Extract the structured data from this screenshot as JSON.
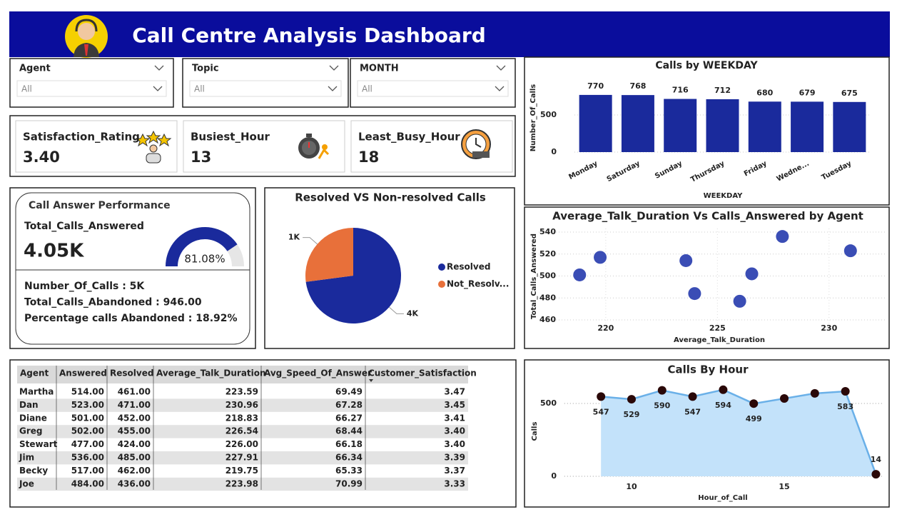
{
  "header": {
    "title": "Call Centre Analysis Dashboard"
  },
  "slicers": [
    {
      "label": "Agent",
      "value": "All"
    },
    {
      "label": "Topic",
      "value": "All"
    },
    {
      "label": "MONTH",
      "value": "All"
    }
  ],
  "kpis": [
    {
      "label": "Satisfaction_Rating",
      "value": "3.40"
    },
    {
      "label": "Busiest_Hour",
      "value": "13"
    },
    {
      "label": "Least_Busy_Hour",
      "value": "18"
    }
  ],
  "performance": {
    "title": "Call Answer Performance",
    "answered_label": "Total_Calls_Answered",
    "answered_value": "4.05K",
    "lines": [
      "Number_Of_Calls : 5K",
      "Total_Calls_Abandoned : 946.00",
      "Percentage calls Abandoned : 18.92%"
    ]
  },
  "table": {
    "columns": [
      "Agent",
      "Answered",
      "Resolved",
      "Average_Talk_Duration",
      "Avg_Speed_Of_Answer",
      "Customer_Satisfaction"
    ],
    "rows": [
      [
        "Martha",
        "514.00",
        "461.00",
        "223.59",
        "69.49",
        "3.47"
      ],
      [
        "Dan",
        "523.00",
        "471.00",
        "230.96",
        "67.28",
        "3.45"
      ],
      [
        "Diane",
        "501.00",
        "452.00",
        "218.83",
        "66.27",
        "3.41"
      ],
      [
        "Greg",
        "502.00",
        "455.00",
        "226.54",
        "68.44",
        "3.40"
      ],
      [
        "Stewart",
        "477.00",
        "424.00",
        "226.00",
        "66.18",
        "3.40"
      ],
      [
        "Jim",
        "536.00",
        "485.00",
        "227.91",
        "66.34",
        "3.39"
      ],
      [
        "Becky",
        "517.00",
        "462.00",
        "219.75",
        "65.33",
        "3.37"
      ],
      [
        "Joe",
        "484.00",
        "436.00",
        "223.98",
        "70.99",
        "3.33"
      ]
    ]
  },
  "chart_data": [
    {
      "type": "bar",
      "title": "Calls by WEEKDAY",
      "xlabel": "WEEKDAY",
      "ylabel": "Number_Of_Calls",
      "categories": [
        "Monday",
        "Saturday",
        "Sunday",
        "Thursday",
        "Friday",
        "Wedne...",
        "Tuesday"
      ],
      "values": [
        770,
        768,
        716,
        712,
        680,
        679,
        675
      ],
      "color": "#1a2a9c",
      "ylim": [
        0,
        1000
      ],
      "yticks": [
        0,
        500
      ],
      "grid": true
    },
    {
      "type": "pie",
      "title": "Resolved VS Non-resolved Calls",
      "categories": [
        "Resolved",
        "Not_Resolv..."
      ],
      "values": [
        3646,
        1354
      ],
      "value_labels": [
        "4K",
        "1K"
      ],
      "colors": [
        "#1a2a9c",
        "#e8703a"
      ]
    },
    {
      "type": "scatter",
      "title": "Average_Talk_Duration Vs Calls_Answered by Agent",
      "xlabel": "Average_Talk_Duration",
      "ylabel": "Total_Calls_Answered",
      "x": [
        223.59,
        230.96,
        218.83,
        226.54,
        226.0,
        227.91,
        219.75,
        223.98
      ],
      "values": [
        514,
        523,
        501,
        502,
        477,
        536,
        517,
        484
      ],
      "color": "#3a4db5",
      "xlim": [
        217,
        232.5
      ],
      "xticks": [
        220,
        225,
        230
      ],
      "ylim": [
        455,
        543
      ],
      "yticks": [
        460,
        480,
        500,
        520,
        540
      ],
      "grid": true
    },
    {
      "type": "area",
      "title": "Calls By Hour",
      "xlabel": "Hour_of_Call",
      "ylabel": "Calls",
      "x": [
        9,
        10,
        11,
        12,
        13,
        14,
        15,
        16,
        17,
        18
      ],
      "values": [
        547,
        529,
        590,
        547,
        594,
        499,
        534,
        569,
        583,
        14
      ],
      "value_labels": [
        "547",
        "529",
        "590",
        "547",
        "594",
        "499",
        null,
        null,
        "583",
        "14"
      ],
      "color": "#6ab0e8",
      "fill": "#c3e2fa",
      "marker_color": "#2a0808",
      "xlim": [
        7.8,
        18.2
      ],
      "xticks": [
        10,
        15
      ],
      "ylim": [
        0,
        670
      ],
      "yticks": [
        0,
        500
      ],
      "grid": true
    },
    {
      "type": "gauge",
      "value": 81.08,
      "value_label": "81.08%",
      "ylim": [
        0,
        100
      ],
      "color": "#1a2a9c",
      "track": "#e6e6e6"
    }
  ]
}
